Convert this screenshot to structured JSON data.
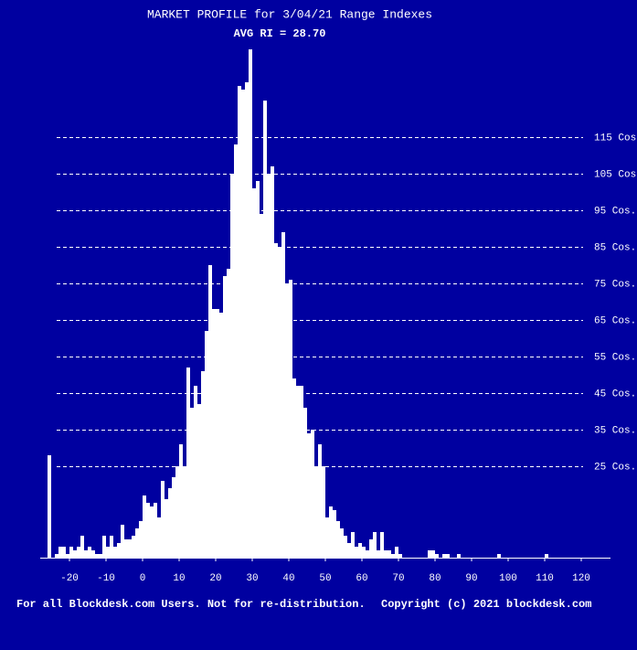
{
  "chart_data": {
    "type": "histogram",
    "title": "MARKET PROFILE for 3/04/21 Range Indexes",
    "subtitle": "AVG RI = 28.70",
    "footer_left": "For all Blockdesk.com Users. Not for re-distribution.",
    "footer_right": "Copyright (c) 2021 blockdesk.com",
    "color": "#ffffff",
    "bins": [
      -26,
      -25,
      -24,
      -23,
      -22,
      -21,
      -20,
      -19,
      -18,
      -17,
      -16,
      -15,
      -14,
      -13,
      -12,
      -11,
      -10,
      -9,
      -8,
      -7,
      -6,
      -5,
      -4,
      -3,
      -2,
      -1,
      0,
      1,
      2,
      3,
      4,
      5,
      6,
      7,
      8,
      9,
      10,
      11,
      12,
      13,
      14,
      15,
      16,
      17,
      18,
      19,
      20,
      21,
      22,
      23,
      24,
      25,
      26,
      27,
      28,
      29,
      30,
      31,
      32,
      33,
      34,
      35,
      36,
      37,
      38,
      39,
      40,
      41,
      42,
      43,
      44,
      45,
      46,
      47,
      48,
      49,
      50,
      51,
      52,
      53,
      54,
      55,
      56,
      57,
      58,
      59,
      60,
      61,
      62,
      63,
      64,
      65,
      66,
      67,
      68,
      69,
      70,
      71,
      72,
      73,
      74,
      75,
      76,
      77,
      78,
      79,
      80,
      81,
      82,
      83,
      84,
      85,
      86,
      87,
      88,
      89,
      90,
      91,
      92,
      93,
      94,
      95,
      96,
      97,
      98,
      99,
      100,
      101,
      102,
      103,
      104,
      105,
      106,
      107,
      108,
      109,
      110,
      111,
      112
    ],
    "counts": [
      28,
      0,
      1,
      3,
      3,
      1,
      3,
      2,
      3,
      6,
      2,
      3,
      2,
      1,
      1,
      6,
      3,
      6,
      3,
      4,
      9,
      5,
      5,
      6,
      8,
      10,
      17,
      15,
      14,
      15,
      11,
      21,
      16,
      19,
      22,
      25,
      31,
      25,
      52,
      41,
      47,
      42,
      51,
      62,
      80,
      68,
      68,
      67,
      77,
      79,
      105,
      113,
      129,
      128,
      130,
      139,
      101,
      103,
      94,
      125,
      105,
      107,
      86,
      85,
      89,
      75,
      76,
      49,
      47,
      47,
      41,
      34,
      35,
      25,
      31,
      25,
      11,
      14,
      13,
      10,
      8,
      6,
      4,
      7,
      3,
      4,
      3,
      2,
      5,
      7,
      2,
      7,
      2,
      2,
      1,
      3,
      1,
      0,
      0,
      0,
      0,
      0,
      0,
      0,
      2,
      2,
      1,
      0,
      1,
      1,
      0,
      0,
      1,
      0,
      0,
      0,
      0,
      0,
      0,
      0,
      0,
      0,
      0,
      1,
      0,
      0,
      0,
      0,
      0,
      0,
      0,
      0,
      0,
      0,
      0,
      0,
      1,
      0
    ],
    "xlim": [
      -28,
      129
    ],
    "xticks": [
      -20,
      -10,
      0,
      10,
      20,
      30,
      40,
      50,
      60,
      70,
      80,
      90,
      100,
      110,
      120
    ],
    "ylim": [
      0,
      140
    ],
    "yticks": [
      {
        "value": 25,
        "label": "25 Cos."
      },
      {
        "value": 35,
        "label": "35 Cos."
      },
      {
        "value": 45,
        "label": "45 Cos."
      },
      {
        "value": 55,
        "label": "55 Cos."
      },
      {
        "value": 65,
        "label": "65 Cos."
      },
      {
        "value": 75,
        "label": "75 Cos."
      },
      {
        "value": 85,
        "label": "85 Cos."
      },
      {
        "value": 95,
        "label": "95 Cos."
      },
      {
        "value": 105,
        "label": "105 Cos."
      },
      {
        "value": 115,
        "label": "115 Cos."
      }
    ],
    "grid": true
  }
}
